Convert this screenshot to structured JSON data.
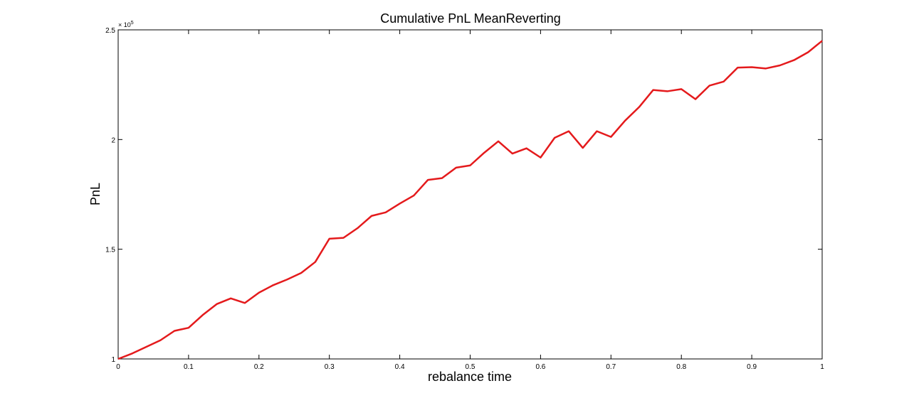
{
  "chart_data": {
    "type": "line",
    "title": "Cumulative PnL MeanReverting",
    "xlabel": "rebalance time",
    "ylabel": "PnL",
    "xlim": [
      0,
      1
    ],
    "ylim": [
      100000,
      250000
    ],
    "y_exponent_label": "× 10",
    "y_exponent_power": "5",
    "x_ticks": [
      0,
      0.1,
      0.2,
      0.3,
      0.4,
      0.5,
      0.6,
      0.7,
      0.8,
      0.9,
      1
    ],
    "x_tick_labels": [
      "0",
      "0.1",
      "0.2",
      "0.3",
      "0.4",
      "0.5",
      "0.6",
      "0.7",
      "0.8",
      "0.9",
      "1"
    ],
    "y_ticks": [
      100000,
      150000,
      200000,
      250000
    ],
    "y_tick_labels": [
      "1",
      "1.5",
      "2",
      "2.5"
    ],
    "grid": false,
    "line_color": "#e41a1c",
    "series": [
      {
        "x": [
          0,
          0.02,
          0.04,
          0.06,
          0.08,
          0.1,
          0.12,
          0.14,
          0.16,
          0.18,
          0.2,
          0.22,
          0.24,
          0.26,
          0.28,
          0.3,
          0.32,
          0.34,
          0.36,
          0.38,
          0.4,
          0.42,
          0.44,
          0.46,
          0.48,
          0.5,
          0.52,
          0.54,
          0.56,
          0.58,
          0.6,
          0.62,
          0.64,
          0.66,
          0.68,
          0.7,
          0.72,
          0.74,
          0.76,
          0.78,
          0.8,
          0.82,
          0.84,
          0.86,
          0.88,
          0.9,
          0.92,
          0.94,
          0.96,
          0.98,
          1
        ],
        "values": [
          100000,
          102500,
          105500,
          108500,
          112800,
          114200,
          120000,
          125000,
          127600,
          125500,
          130200,
          133600,
          136200,
          139200,
          144200,
          154800,
          155200,
          159600,
          165200,
          166800,
          170800,
          174500,
          181600,
          182400,
          187200,
          188200,
          194000,
          199200,
          193600,
          196000,
          191800,
          200800,
          203800,
          196200,
          203800,
          201200,
          208600,
          214800,
          222600,
          222000,
          223000,
          218400,
          224600,
          226400,
          232800,
          233000,
          232400,
          233800,
          236200,
          239800,
          245000
        ]
      }
    ]
  }
}
